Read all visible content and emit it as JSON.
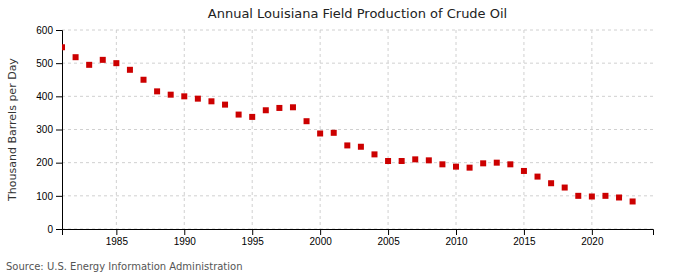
{
  "chart_data": {
    "type": "scatter",
    "title": "Annual Louisiana Field Production of Crude Oil",
    "ylabel": "Thousand Barrels per Day",
    "source": "Source: U.S. Energy Information Administration",
    "color": "#cc0000",
    "marker": "square",
    "grid": true,
    "xlim": [
      1981,
      2024.5
    ],
    "xticks": [
      1985,
      1990,
      1995,
      2000,
      2005,
      2010,
      2015,
      2020
    ],
    "ylim": [
      0,
      600
    ],
    "yticks": [
      0,
      100,
      200,
      300,
      400,
      500,
      600
    ],
    "x": [
      1981,
      1982,
      1983,
      1984,
      1985,
      1986,
      1987,
      1988,
      1989,
      1990,
      1991,
      1992,
      1993,
      1994,
      1995,
      1996,
      1997,
      1998,
      1999,
      2000,
      2001,
      2002,
      2003,
      2004,
      2005,
      2006,
      2007,
      2008,
      2009,
      2010,
      2011,
      2012,
      2013,
      2014,
      2015,
      2016,
      2017,
      2018,
      2019,
      2020,
      2021,
      2022,
      2023
    ],
    "values": [
      548,
      518,
      495,
      510,
      500,
      480,
      450,
      415,
      405,
      400,
      393,
      385,
      375,
      345,
      338,
      358,
      365,
      367,
      325,
      288,
      290,
      252,
      248,
      225,
      205,
      205,
      210,
      207,
      195,
      188,
      185,
      198,
      200,
      195,
      175,
      158,
      138,
      125,
      100,
      98,
      100,
      95,
      83
    ]
  }
}
